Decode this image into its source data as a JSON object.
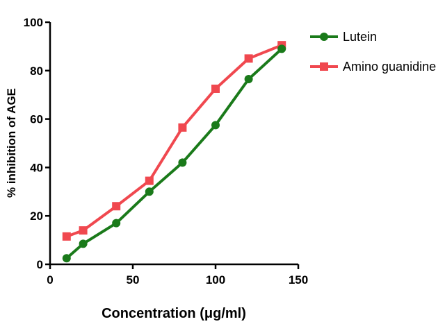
{
  "chart_data": {
    "type": "line",
    "xlabel": "Concentration (μg/ml)",
    "ylabel": "% inhibition of AGE",
    "xlim": [
      0,
      150
    ],
    "ylim": [
      0,
      100
    ],
    "xticks": [
      "0",
      "50",
      "100",
      "150"
    ],
    "yticks": [
      "0",
      "20",
      "40",
      "60",
      "80",
      "100"
    ],
    "grid": false,
    "legend_position": "top-right",
    "series": [
      {
        "name": "Lutein",
        "color": "#1a7a1a",
        "marker": "circle",
        "x": [
          10,
          20,
          40,
          60,
          80,
          100,
          120,
          140
        ],
        "y": [
          2.5,
          8.5,
          17,
          30,
          42,
          57.5,
          76.5,
          89
        ]
      },
      {
        "name": "Amino guanidine",
        "color": "#f0484f",
        "marker": "square",
        "x": [
          10,
          20,
          40,
          60,
          80,
          100,
          120,
          140
        ],
        "y": [
          11.5,
          14,
          24,
          34.5,
          56.5,
          72.5,
          85,
          90.5
        ]
      }
    ]
  }
}
